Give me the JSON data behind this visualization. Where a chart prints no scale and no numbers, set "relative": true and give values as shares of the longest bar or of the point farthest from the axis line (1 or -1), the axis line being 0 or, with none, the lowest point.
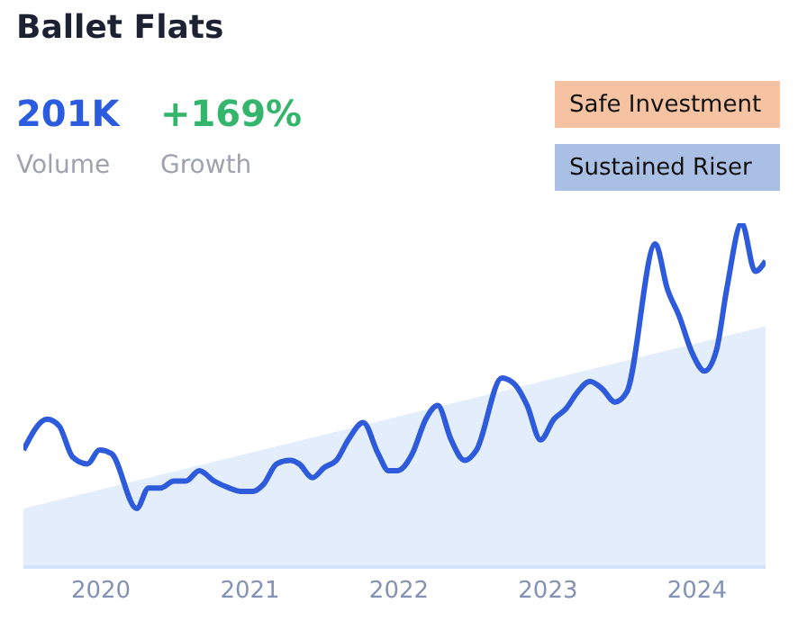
{
  "chart_data": {
    "type": "line",
    "title": "Ballet Flats",
    "relative": true,
    "line_style": "solid",
    "marker": "none",
    "annotations": [
      "201K",
      "Volume",
      "+169%",
      "Growth",
      "Safe Investment",
      "Sustained Riser"
    ],
    "xlim": [
      2019.48,
      2024.46
    ],
    "xticks": [
      2020,
      2021,
      2022,
      2023,
      2024
    ],
    "series": [
      {
        "type": "area",
        "color": "#e3edfb",
        "x": [
          2019.48,
          2024.46
        ],
        "values": [
          0.17,
          0.7
        ]
      },
      {
        "type": "line",
        "color": "#2e5bdb",
        "x": [
          2019.48,
          2019.64,
          2019.72,
          2019.81,
          2019.91,
          2019.99,
          2020.07,
          2020.24,
          2020.32,
          2020.4,
          2020.49,
          2020.57,
          2020.66,
          2020.76,
          2020.86,
          2020.94,
          2021.02,
          2021.09,
          2021.18,
          2021.27,
          2021.33,
          2021.42,
          2021.5,
          2021.58,
          2021.66,
          2021.76,
          2021.86,
          2021.93,
          2021.99,
          2022.09,
          2022.18,
          2022.26,
          2022.35,
          2022.44,
          2022.52,
          2022.69,
          2022.78,
          2022.86,
          2022.95,
          2023.04,
          2023.12,
          2023.2,
          2023.28,
          2023.36,
          2023.45,
          2023.53,
          2023.72,
          2023.8,
          2023.88,
          2023.97,
          2024.05,
          2024.13,
          2024.2,
          2024.3,
          2024.39,
          2024.46
        ],
        "values": [
          0.34,
          0.43,
          0.41,
          0.32,
          0.3,
          0.34,
          0.33,
          0.17,
          0.23,
          0.23,
          0.25,
          0.25,
          0.28,
          0.25,
          0.23,
          0.22,
          0.22,
          0.24,
          0.3,
          0.31,
          0.3,
          0.26,
          0.29,
          0.31,
          0.37,
          0.42,
          0.33,
          0.28,
          0.28,
          0.33,
          0.43,
          0.47,
          0.37,
          0.31,
          0.34,
          0.55,
          0.53,
          0.47,
          0.37,
          0.43,
          0.46,
          0.51,
          0.54,
          0.52,
          0.48,
          0.51,
          0.94,
          0.81,
          0.73,
          0.62,
          0.57,
          0.63,
          0.81,
          1,
          0.86,
          0.89
        ]
      }
    ]
  }
}
